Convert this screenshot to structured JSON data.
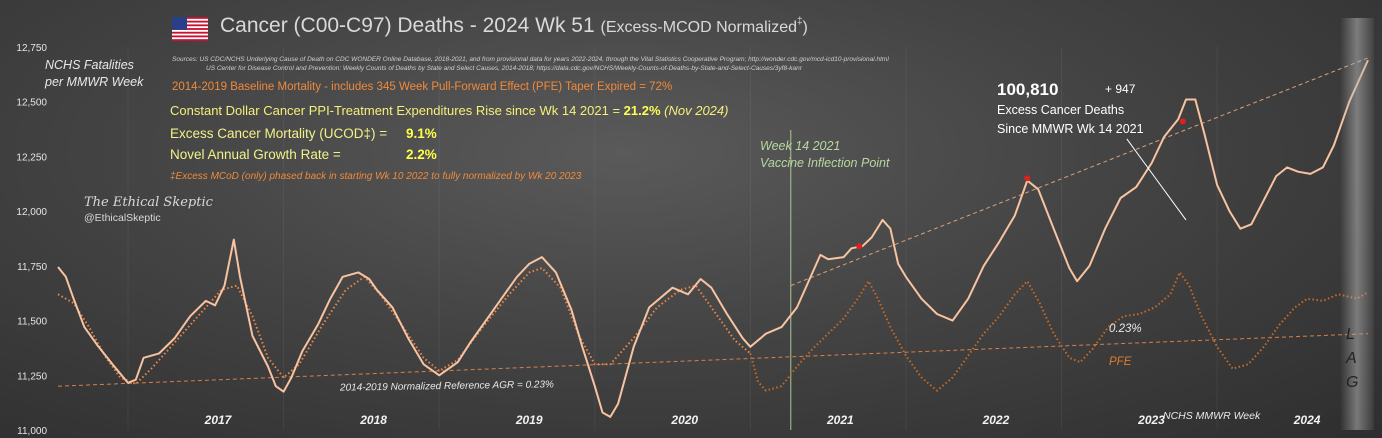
{
  "header": {
    "title_main": "Cancer (C00-C97) Deaths - 2024 Wk 51",
    "title_paren": "(Excess-MCOD  Normalized",
    "title_dagger": "‡",
    "title_close": ")",
    "sources_line1": "Sources:  US CDC/NCHS Underlying  Cause of Death on CDC WONDER Online Database, 2018-2021, and from provisional data for years 2022-2024, through the Vital Statistics Cooperative Program; http://wonder.cdc.gov/mcd-icd10-provisional.html",
    "sources_line2": "US Center for Disease Control and Prevention: Weekly  Counts of Deaths by State and Select Causes, 2014-2018; https://data.cdc.gov/NCHS/Weekly-Counts-of-Deaths-by-State-and-Select-Causes/3yf8-kanr"
  },
  "annotations": {
    "baseline": "2014-2019 Baseline Mortality - includes 345 Week Pull-Forward Effect (PFE) Taper Expired =    72%",
    "ppi_text": "Constant Dollar Cancer PPI-Treatment Expenditures Rise since Wk 14 2021  = ",
    "ppi_value": "21.2%",
    "ppi_note": "(Nov 2024)",
    "excess_mortality_label": "Excess Cancer Mortality (UCOD‡) =",
    "excess_mortality_value": "9.1%",
    "growth_label": "Novel Annual  Growth  Rate  =",
    "growth_value": "2.2%",
    "footnote": "‡Excess  MCoD (only) phased back in starting  Wk 10 2022 to fully normalized  by Wk 20 2023",
    "ylabel_line1": "NCHS Fatalities",
    "ylabel_line2": "per MMWR Week",
    "brand_name": "The Ethical Skeptic",
    "brand_handle": "@EthicalSkeptic",
    "excess_number": "100,810",
    "excess_add": "+  947",
    "excess_line1": "Excess Cancer Deaths",
    "excess_line2": "Since MMWR  Wk 14 2021",
    "inflection_line1": "Week 14 2021",
    "inflection_line2": "Vaccine Inflection Point",
    "ref_label": "2014-2019 Normalized Reference AGR = 0.23%",
    "pct_label": "0.23%",
    "pfe_label": "PFE",
    "xaxis_label": "NCHS MMWR  Week",
    "lag_l": "L",
    "lag_a": "A",
    "lag_g": "G"
  },
  "colors": {
    "actual": "#f7c3a1",
    "expected": "#e8874a",
    "pfe": "#c86a26",
    "trend": "#d9a07a",
    "marker": "#e02020",
    "inflection_line": "#a8c890"
  },
  "chart_data": {
    "type": "line",
    "ylabel": "NCHS Fatalities per MMWR Week",
    "xlabel": "NCHS MMWR  Week",
    "ylim": [
      11000,
      12750
    ],
    "yticks": [
      11000,
      11250,
      11500,
      11750,
      12000,
      12250,
      12500,
      12750
    ],
    "ytick_labels": [
      "11,000",
      "11,250",
      "11,500",
      "11,750",
      "12,000",
      "12,250",
      "12,500",
      "12,750"
    ],
    "xlim": [
      2016.55,
      2024.97
    ],
    "year_labels": [
      {
        "label": "2017",
        "x": 2017.0
      },
      {
        "label": "2018",
        "x": 2018.0
      },
      {
        "label": "2019",
        "x": 2019.0
      },
      {
        "label": "2020",
        "x": 2020.0
      },
      {
        "label": "2021",
        "x": 2021.0
      },
      {
        "label": "2022",
        "x": 2022.0
      },
      {
        "label": "2023",
        "x": 2023.0
      },
      {
        "label": "2024",
        "x": 2024.0
      }
    ],
    "inflection_x": 2021.26,
    "series": [
      {
        "key": "actual",
        "points": [
          [
            2016.55,
            11745
          ],
          [
            2016.6,
            11700
          ],
          [
            2016.65,
            11600
          ],
          [
            2016.72,
            11470
          ],
          [
            2016.8,
            11390
          ],
          [
            2016.9,
            11300
          ],
          [
            2017.0,
            11215
          ],
          [
            2017.05,
            11230
          ],
          [
            2017.1,
            11330
          ],
          [
            2017.2,
            11350
          ],
          [
            2017.3,
            11420
          ],
          [
            2017.4,
            11520
          ],
          [
            2017.5,
            11590
          ],
          [
            2017.56,
            11570
          ],
          [
            2017.62,
            11660
          ],
          [
            2017.68,
            11870
          ],
          [
            2017.72,
            11700
          ],
          [
            2017.8,
            11430
          ],
          [
            2017.9,
            11290
          ],
          [
            2017.95,
            11200
          ],
          [
            2018.0,
            11175
          ],
          [
            2018.05,
            11240
          ],
          [
            2018.12,
            11360
          ],
          [
            2018.22,
            11480
          ],
          [
            2018.3,
            11600
          ],
          [
            2018.38,
            11700
          ],
          [
            2018.48,
            11720
          ],
          [
            2018.55,
            11690
          ],
          [
            2018.6,
            11640
          ],
          [
            2018.7,
            11560
          ],
          [
            2018.8,
            11420
          ],
          [
            2018.9,
            11300
          ],
          [
            2019.0,
            11250
          ],
          [
            2019.05,
            11275
          ],
          [
            2019.12,
            11310
          ],
          [
            2019.2,
            11400
          ],
          [
            2019.3,
            11500
          ],
          [
            2019.4,
            11600
          ],
          [
            2019.5,
            11700
          ],
          [
            2019.58,
            11760
          ],
          [
            2019.66,
            11790
          ],
          [
            2019.75,
            11720
          ],
          [
            2019.85,
            11550
          ],
          [
            2019.92,
            11380
          ],
          [
            2020.0,
            11200
          ],
          [
            2020.05,
            11080
          ],
          [
            2020.1,
            11060
          ],
          [
            2020.15,
            11120
          ],
          [
            2020.25,
            11380
          ],
          [
            2020.35,
            11560
          ],
          [
            2020.5,
            11650
          ],
          [
            2020.6,
            11620
          ],
          [
            2020.68,
            11690
          ],
          [
            2020.75,
            11650
          ],
          [
            2020.85,
            11530
          ],
          [
            2020.95,
            11420
          ],
          [
            2021.0,
            11380
          ],
          [
            2021.1,
            11440
          ],
          [
            2021.2,
            11470
          ],
          [
            2021.3,
            11560
          ],
          [
            2021.4,
            11720
          ],
          [
            2021.45,
            11800
          ],
          [
            2021.5,
            11780
          ],
          [
            2021.6,
            11790
          ],
          [
            2021.65,
            11830
          ],
          [
            2021.72,
            11840
          ],
          [
            2021.78,
            11880
          ],
          [
            2021.85,
            11960
          ],
          [
            2021.9,
            11920
          ],
          [
            2021.95,
            11760
          ],
          [
            2022.0,
            11700
          ],
          [
            2022.1,
            11600
          ],
          [
            2022.2,
            11530
          ],
          [
            2022.3,
            11500
          ],
          [
            2022.4,
            11600
          ],
          [
            2022.5,
            11750
          ],
          [
            2022.6,
            11860
          ],
          [
            2022.7,
            11980
          ],
          [
            2022.78,
            12140
          ],
          [
            2022.85,
            12100
          ],
          [
            2022.95,
            11920
          ],
          [
            2023.05,
            11740
          ],
          [
            2023.1,
            11680
          ],
          [
            2023.18,
            11750
          ],
          [
            2023.28,
            11920
          ],
          [
            2023.38,
            12060
          ],
          [
            2023.48,
            12110
          ],
          [
            2023.58,
            12220
          ],
          [
            2023.66,
            12340
          ],
          [
            2023.75,
            12420
          ],
          [
            2023.8,
            12510
          ],
          [
            2023.86,
            12510
          ],
          [
            2023.92,
            12350
          ],
          [
            2024.0,
            12120
          ],
          [
            2024.08,
            12000
          ],
          [
            2024.15,
            11920
          ],
          [
            2024.22,
            11940
          ],
          [
            2024.3,
            12050
          ],
          [
            2024.38,
            12160
          ],
          [
            2024.45,
            12200
          ],
          [
            2024.52,
            12180
          ],
          [
            2024.6,
            12170
          ],
          [
            2024.68,
            12200
          ],
          [
            2024.75,
            12300
          ],
          [
            2024.85,
            12500
          ],
          [
            2024.97,
            12690
          ]
        ]
      },
      {
        "key": "expected",
        "points": [
          [
            2016.55,
            11620
          ],
          [
            2016.65,
            11580
          ],
          [
            2016.75,
            11470
          ],
          [
            2016.85,
            11340
          ],
          [
            2016.95,
            11240
          ],
          [
            2017.05,
            11210
          ],
          [
            2017.15,
            11280
          ],
          [
            2017.3,
            11400
          ],
          [
            2017.45,
            11520
          ],
          [
            2017.6,
            11640
          ],
          [
            2017.7,
            11660
          ],
          [
            2017.8,
            11520
          ],
          [
            2017.9,
            11330
          ],
          [
            2018.0,
            11240
          ],
          [
            2018.1,
            11300
          ],
          [
            2018.25,
            11480
          ],
          [
            2018.4,
            11640
          ],
          [
            2018.52,
            11700
          ],
          [
            2018.62,
            11620
          ],
          [
            2018.75,
            11490
          ],
          [
            2018.9,
            11330
          ],
          [
            2019.0,
            11270
          ],
          [
            2019.12,
            11320
          ],
          [
            2019.28,
            11470
          ],
          [
            2019.45,
            11620
          ],
          [
            2019.58,
            11720
          ],
          [
            2019.66,
            11740
          ],
          [
            2019.78,
            11650
          ],
          [
            2019.9,
            11430
          ],
          [
            2020.0,
            11300
          ],
          [
            2020.1,
            11300
          ],
          [
            2020.25,
            11420
          ],
          [
            2020.4,
            11560
          ],
          [
            2020.55,
            11640
          ],
          [
            2020.65,
            11660
          ],
          [
            2020.75,
            11560
          ],
          [
            2020.9,
            11410
          ],
          [
            2021.0,
            11350
          ]
        ]
      },
      {
        "key": "pfe",
        "points": [
          [
            2021.0,
            11350
          ],
          [
            2021.05,
            11220
          ],
          [
            2021.1,
            11180
          ],
          [
            2021.2,
            11200
          ],
          [
            2021.3,
            11290
          ],
          [
            2021.4,
            11370
          ],
          [
            2021.5,
            11440
          ],
          [
            2021.6,
            11510
          ],
          [
            2021.7,
            11610
          ],
          [
            2021.76,
            11680
          ],
          [
            2021.82,
            11600
          ],
          [
            2021.9,
            11470
          ],
          [
            2022.0,
            11340
          ],
          [
            2022.1,
            11240
          ],
          [
            2022.2,
            11180
          ],
          [
            2022.3,
            11240
          ],
          [
            2022.4,
            11340
          ],
          [
            2022.5,
            11440
          ],
          [
            2022.6,
            11520
          ],
          [
            2022.7,
            11620
          ],
          [
            2022.78,
            11680
          ],
          [
            2022.86,
            11580
          ],
          [
            2022.95,
            11440
          ],
          [
            2023.05,
            11330
          ],
          [
            2023.12,
            11310
          ],
          [
            2023.2,
            11370
          ],
          [
            2023.3,
            11470
          ],
          [
            2023.4,
            11520
          ],
          [
            2023.5,
            11530
          ],
          [
            2023.6,
            11560
          ],
          [
            2023.7,
            11620
          ],
          [
            2023.76,
            11720
          ],
          [
            2023.82,
            11660
          ],
          [
            2023.9,
            11520
          ],
          [
            2024.0,
            11380
          ],
          [
            2024.1,
            11280
          ],
          [
            2024.2,
            11300
          ],
          [
            2024.3,
            11380
          ],
          [
            2024.4,
            11480
          ],
          [
            2024.5,
            11560
          ],
          [
            2024.58,
            11600
          ],
          [
            2024.68,
            11590
          ],
          [
            2024.78,
            11620
          ],
          [
            2024.9,
            11600
          ],
          [
            2024.97,
            11630
          ]
        ]
      },
      {
        "key": "trend_upper",
        "points": [
          [
            2021.26,
            11660
          ],
          [
            2024.97,
            12700
          ]
        ]
      },
      {
        "key": "reference",
        "points": [
          [
            2016.55,
            11200
          ],
          [
            2024.97,
            11440
          ]
        ]
      }
    ],
    "markers": [
      [
        2021.7,
        11840
      ],
      [
        2022.78,
        12150
      ],
      [
        2023.78,
        12410
      ]
    ],
    "annotation_line": [
      [
        2023.42,
        12330
      ],
      [
        2023.8,
        11960
      ]
    ]
  }
}
